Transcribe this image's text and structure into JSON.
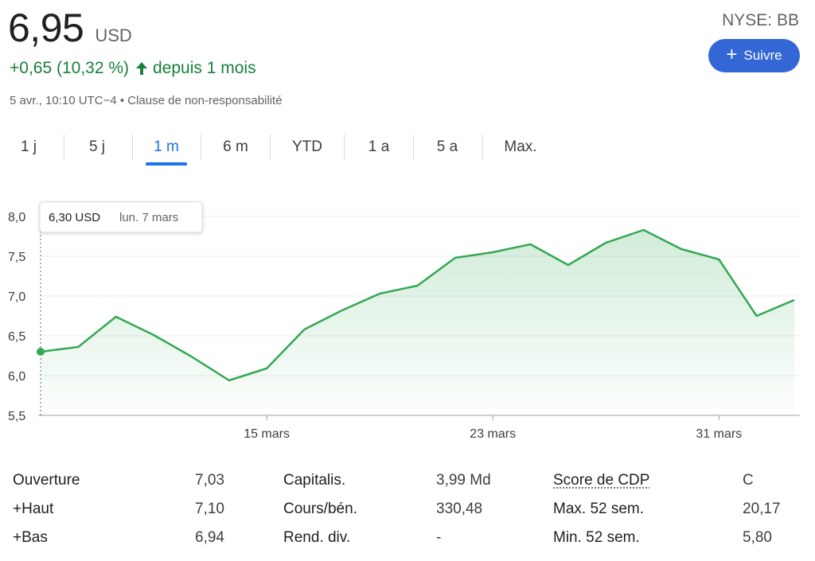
{
  "quote": {
    "price": "6,95",
    "currency": "USD",
    "change": "+0,65 (10,32 %)",
    "change_period": "depuis 1 mois",
    "timestamp": "5 avr., 10:10 UTC−4",
    "separator": " • ",
    "disclaimer": "Clause de non-responsabilité",
    "exchange_ticker": "NYSE: BB",
    "accent_color": "#188038"
  },
  "follow_button": {
    "label": "Suivre",
    "color": "#3367d6"
  },
  "tabs": [
    {
      "label": "1 j",
      "active": false
    },
    {
      "label": "5 j",
      "active": false
    },
    {
      "label": "1 m",
      "active": true
    },
    {
      "label": "6 m",
      "active": false
    },
    {
      "label": "YTD",
      "active": false
    },
    {
      "label": "1 a",
      "active": false
    },
    {
      "label": "5 a",
      "active": false
    },
    {
      "label": "Max.",
      "active": false
    }
  ],
  "tooltip": {
    "value": "6,30 USD",
    "date": "lun. 7 mars"
  },
  "chart_data": {
    "type": "area",
    "ylim": [
      5.5,
      8.0
    ],
    "y_ticks": [
      "8,0",
      "7,5",
      "7,0",
      "6,5",
      "6,0",
      "5,5"
    ],
    "x_ticks": [
      "15 mars",
      "23 mars",
      "31 mars"
    ],
    "grid": true,
    "line_color": "#34a853",
    "values": [
      6.3,
      6.36,
      6.74,
      6.51,
      6.24,
      5.94,
      6.09,
      6.58,
      6.82,
      7.03,
      7.13,
      7.48,
      7.55,
      7.65,
      7.39,
      7.67,
      7.83,
      7.59,
      7.46,
      6.75,
      6.95
    ]
  },
  "stats": [
    {
      "label": "Ouverture",
      "value": "7,03"
    },
    {
      "label": "+Haut",
      "value": "7,10"
    },
    {
      "label": "+Bas",
      "value": "6,94"
    },
    {
      "label": "Capitalis.",
      "value": "3,99 Md"
    },
    {
      "label": "Cours/bén.",
      "value": "330,48"
    },
    {
      "label": "Rend. div.",
      "value": "-"
    },
    {
      "label": "Score de CDP",
      "value": "C"
    },
    {
      "label": "Max. 52 sem.",
      "value": "20,17"
    },
    {
      "label": "Min. 52 sem.",
      "value": "5,80"
    }
  ]
}
